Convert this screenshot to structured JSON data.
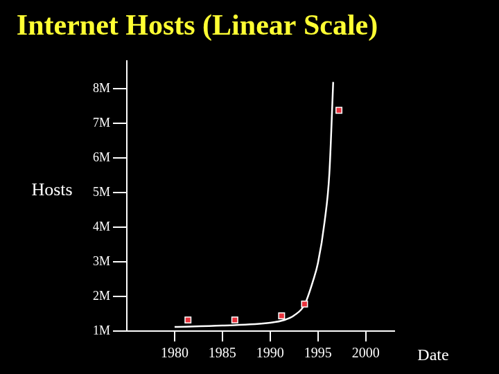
{
  "chart_data": {
    "type": "scatter",
    "title": "Internet Hosts (Linear Scale)",
    "x_label": "Date",
    "y_label": "Hosts",
    "xlim": [
      1975,
      2003
    ],
    "xticks": [
      1980,
      1985,
      1990,
      1995,
      2000
    ],
    "ylim": [
      1000000,
      8800000
    ],
    "yticks": [
      {
        "value": 1000000,
        "label": "1M"
      },
      {
        "value": 2000000,
        "label": "2M"
      },
      {
        "value": 3000000,
        "label": "3M"
      },
      {
        "value": 4000000,
        "label": "4M"
      },
      {
        "value": 5000000,
        "label": "5M"
      },
      {
        "value": 6000000,
        "label": "6M"
      },
      {
        "value": 7000000,
        "label": "7M"
      },
      {
        "value": 8000000,
        "label": "8M"
      }
    ],
    "grid": false,
    "series": [
      {
        "type": "scatter",
        "color": "#e8323c",
        "marker": "square",
        "x": [
          1981.4,
          1986.3,
          1991.2,
          1993.6,
          1997.2
        ],
        "values": [
          1320000,
          1320000,
          1440000,
          1780000,
          7380000
        ]
      },
      {
        "type": "line",
        "color": "#ffffff",
        "marker": "none",
        "line_style": "solid",
        "x": [
          1980,
          1985,
          1990,
          1991.5,
          1992.5,
          1993.6,
          1994.5,
          1995,
          1995.7,
          1996.2,
          1996.6
        ],
        "values": [
          1120000,
          1160000,
          1240000,
          1320000,
          1450000,
          1760000,
          2460000,
          2960000,
          4160000,
          5560000,
          8200000
        ]
      }
    ]
  }
}
